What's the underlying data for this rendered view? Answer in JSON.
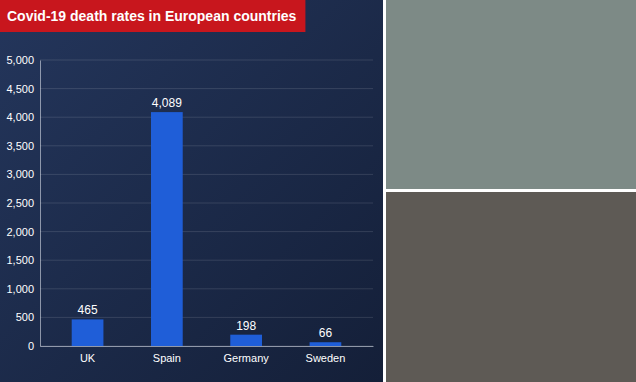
{
  "chart_data": {
    "type": "bar",
    "title": "Covid-19 death rates in European countries",
    "categories": [
      "UK",
      "Spain",
      "Germany",
      "Sweden"
    ],
    "values": [
      465,
      4089,
      198,
      66
    ],
    "value_labels": [
      "465",
      "4,089",
      "198",
      "66"
    ],
    "color": "#1f5ed8",
    "ylim": [
      0,
      5000
    ],
    "yticks": [
      0,
      500,
      {
        "value": 1000,
        "label": "1,000"
      },
      {
        "value": 1500,
        "label": "1,500"
      },
      {
        "value": 2000,
        "label": "2,000"
      },
      {
        "value": 2500,
        "label": "2,500"
      },
      {
        "value": 3000,
        "label": "3,000"
      },
      {
        "value": 3500,
        "label": "3,500"
      },
      {
        "value": 4000,
        "label": "4,000"
      },
      {
        "value": 4500,
        "label": "4,500"
      },
      {
        "value": 5000,
        "label": "5,000"
      }
    ],
    "grid": true,
    "data_labels": true
  }
}
